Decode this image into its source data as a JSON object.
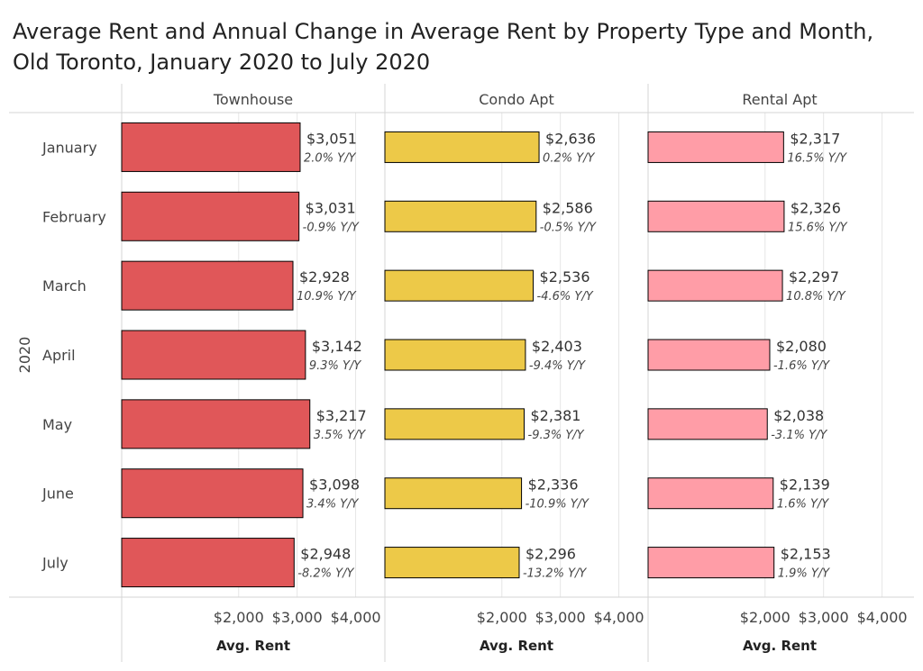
{
  "title": "Average Rent and Annual Change in Average Rent by Property Type and Month, Old Toronto, January 2020 to July 2020",
  "colors": {
    "townhouse": "#e05759",
    "condo": "#edc948",
    "rental": "#ff9da7",
    "bar_outline": "#000000",
    "grid": "#e6e6e6",
    "divider": "#d4d4d4"
  },
  "chart_data": {
    "type": "bar",
    "orientation": "horizontal",
    "row_group_label": "2020",
    "categories": [
      "January",
      "February",
      "March",
      "April",
      "May",
      "June",
      "July"
    ],
    "series": [
      {
        "name": "Townhouse",
        "values": [
          3051,
          3031,
          2928,
          3142,
          3217,
          3098,
          2948
        ],
        "value_labels": [
          "$3,051",
          "$3,031",
          "$2,928",
          "$3,142",
          "$3,217",
          "$3,098",
          "$2,948"
        ],
        "change_labels": [
          "2.0% Y/Y",
          "-0.9% Y/Y",
          "10.9% Y/Y",
          "9.3% Y/Y",
          "3.5% Y/Y",
          "3.4% Y/Y",
          "-8.2% Y/Y"
        ]
      },
      {
        "name": "Condo Apt",
        "values": [
          2636,
          2586,
          2536,
          2403,
          2381,
          2336,
          2296
        ],
        "value_labels": [
          "$2,636",
          "$2,586",
          "$2,536",
          "$2,403",
          "$2,381",
          "$2,336",
          "$2,296"
        ],
        "change_labels": [
          "0.2% Y/Y",
          "-0.5% Y/Y",
          "-4.6% Y/Y",
          "-9.4% Y/Y",
          "-9.3% Y/Y",
          "-10.9% Y/Y",
          "-13.2% Y/Y"
        ]
      },
      {
        "name": "Rental Apt",
        "values": [
          2317,
          2326,
          2297,
          2080,
          2038,
          2139,
          2153
        ],
        "value_labels": [
          "$2,317",
          "$2,326",
          "$2,297",
          "$2,080",
          "$2,038",
          "$2,139",
          "$2,153"
        ],
        "change_labels": [
          "16.5% Y/Y",
          "15.6% Y/Y",
          "10.8% Y/Y",
          "-1.6% Y/Y",
          "-3.1% Y/Y",
          "1.6% Y/Y",
          "1.9% Y/Y"
        ]
      }
    ],
    "xlabel": "Avg. Rent",
    "xlim": [
      0,
      4500
    ],
    "x_ticks": [
      2000,
      3000,
      4000
    ],
    "x_tick_labels": [
      "$2,000",
      "$3,000",
      "$4,000"
    ],
    "grid": true,
    "legend": "none"
  }
}
